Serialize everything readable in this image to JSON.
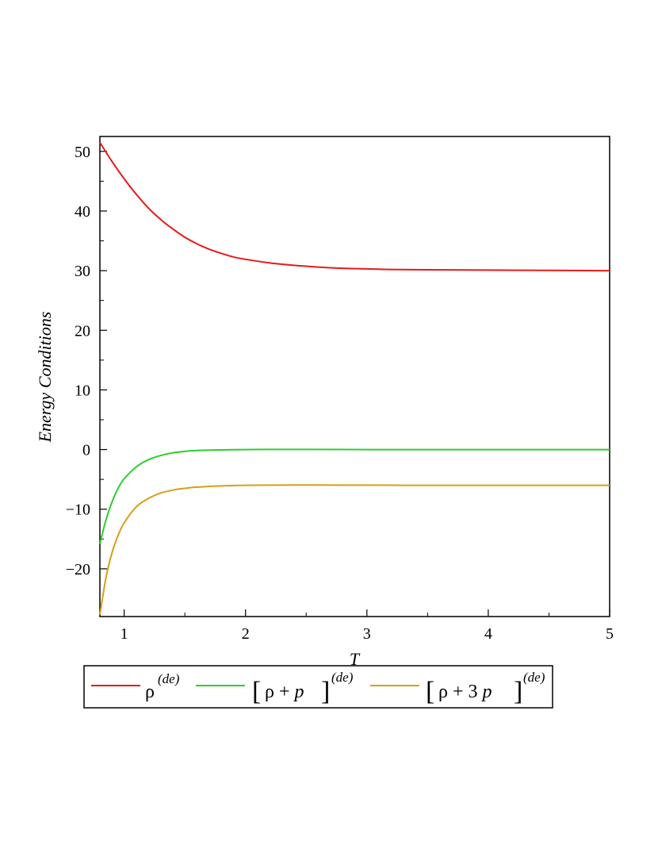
{
  "chart_data": {
    "type": "line",
    "xlabel": "T",
    "ylabel": "Energy Conditions",
    "xlim": [
      0.8,
      5
    ],
    "ylim": [
      -28,
      52.5
    ],
    "xticks": [
      1,
      2,
      3,
      4,
      5
    ],
    "yticks": [
      -20,
      -10,
      0,
      10,
      20,
      30,
      40,
      50
    ],
    "grid": false,
    "legend_position": "bottom",
    "series": [
      {
        "key": "rho",
        "color": "#e8191a",
        "legend": {
          "main": "ρ",
          "sup": "(de)"
        },
        "x": [
          0.8,
          0.9,
          1.0,
          1.1,
          1.2,
          1.3,
          1.4,
          1.5,
          1.6,
          1.7,
          1.8,
          1.9,
          2.0,
          2.2,
          2.4,
          2.6,
          2.8,
          3.0,
          3.2,
          3.5,
          4.0,
          4.5,
          5.0
        ],
        "values": [
          51.5,
          48.3,
          45.4,
          42.8,
          40.5,
          38.6,
          37.0,
          35.6,
          34.5,
          33.6,
          32.9,
          32.3,
          31.9,
          31.3,
          30.9,
          30.6,
          30.4,
          30.3,
          30.2,
          30.15,
          30.1,
          30.05,
          30.0
        ]
      },
      {
        "key": "rho_plus_p",
        "color": "#2ecc2e",
        "legend": {
          "open": "[",
          "main": "ρ + ",
          "var": "p",
          "close": "]",
          "sup": "(de)"
        },
        "x": [
          0.8,
          0.85,
          0.9,
          0.95,
          1.0,
          1.1,
          1.2,
          1.3,
          1.4,
          1.5,
          1.6,
          1.8,
          2.0,
          2.2,
          2.5,
          3.0,
          3.5,
          4.0,
          4.5,
          5.0
        ],
        "values": [
          -15.8,
          -11.8,
          -8.8,
          -6.5,
          -4.9,
          -2.9,
          -1.7,
          -1.0,
          -0.55,
          -0.3,
          -0.15,
          -0.05,
          0.0,
          0.02,
          0.03,
          0.0,
          0.0,
          0.0,
          0.0,
          0.0
        ]
      },
      {
        "key": "rho_plus_3p",
        "color": "#d4a017",
        "legend": {
          "open": "[",
          "main": "ρ + 3 ",
          "var": "p",
          "close": "]",
          "sup": "(de)"
        },
        "x": [
          0.8,
          0.85,
          0.9,
          0.95,
          1.0,
          1.1,
          1.2,
          1.3,
          1.4,
          1.5,
          1.6,
          1.8,
          2.0,
          2.2,
          2.5,
          3.0,
          3.5,
          4.0,
          4.5,
          5.0
        ],
        "values": [
          -27.7,
          -21.5,
          -17.3,
          -14.4,
          -12.3,
          -9.6,
          -8.2,
          -7.3,
          -6.8,
          -6.5,
          -6.3,
          -6.1,
          -6.0,
          -5.97,
          -5.95,
          -5.97,
          -6.0,
          -6.0,
          -6.0,
          -6.0
        ]
      }
    ]
  }
}
